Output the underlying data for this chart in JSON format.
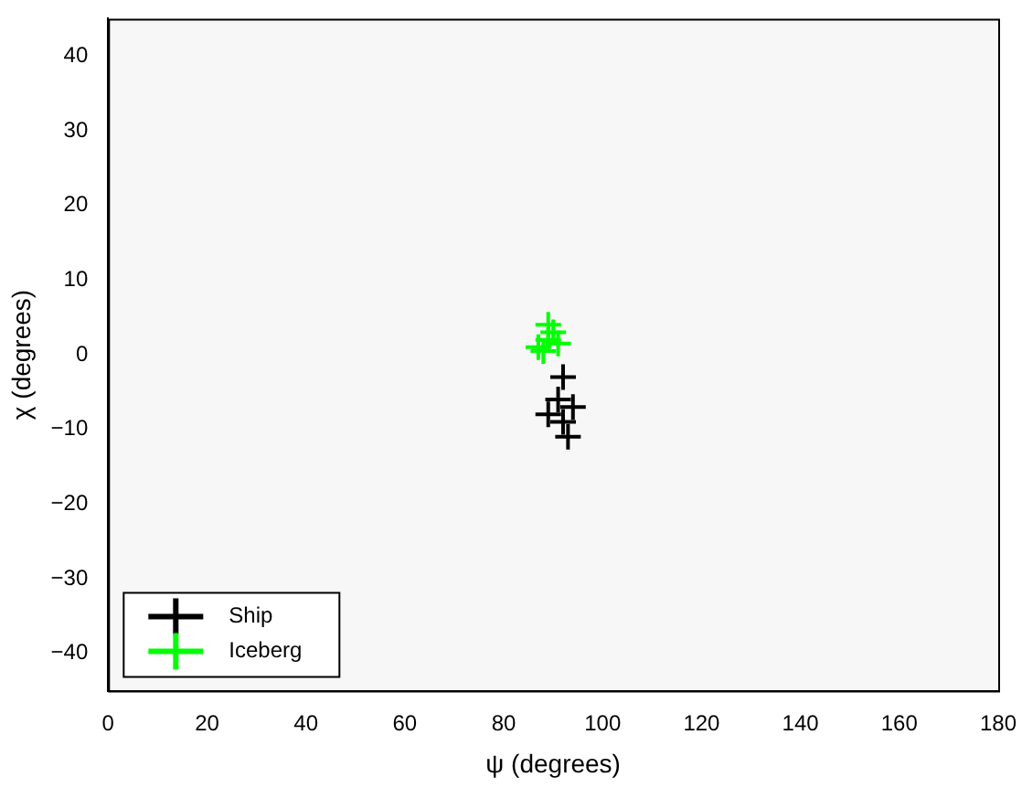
{
  "chart_data": {
    "type": "scatter",
    "xlabel": "ψ (degrees)",
    "ylabel": "χ (degrees)",
    "xlim": [
      0,
      180
    ],
    "xticks": [
      0,
      20,
      40,
      60,
      80,
      100,
      120,
      140,
      160,
      180
    ],
    "ylim": [
      -45,
      45
    ],
    "yticks": [
      -40,
      -30,
      -20,
      -10,
      0,
      10,
      20,
      30,
      40
    ],
    "marker": "cross",
    "grid": false,
    "legend": "bottom left",
    "series": [
      {
        "name": "Ship",
        "color": "#000000",
        "x": [
          92,
          89,
          94,
          92,
          91,
          93
        ],
        "values": [
          -3,
          -8,
          -7,
          -9,
          -6,
          -11
        ]
      },
      {
        "name": "Iceberg",
        "color": "#00ff00",
        "x": [
          87,
          89,
          90,
          88,
          91,
          89
        ],
        "values": [
          1,
          2,
          3,
          0.5,
          1.5,
          4
        ]
      }
    ]
  }
}
